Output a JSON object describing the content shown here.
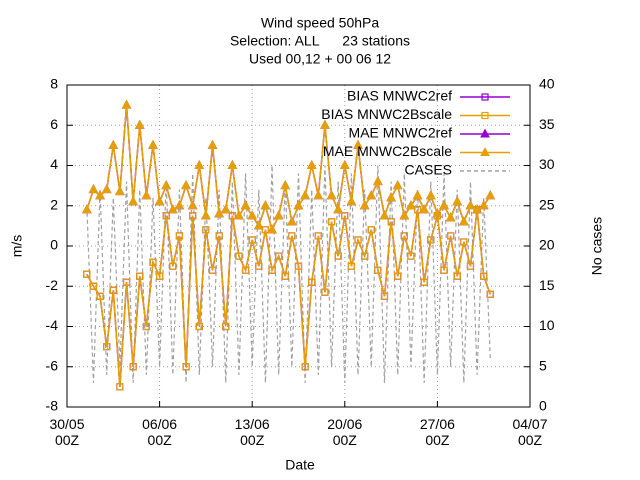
{
  "chart_data": {
    "type": "line",
    "title": [
      "Wind speed 50hPa",
      "Selection: ALL      23 stations",
      "Used 00,12 + 00 06 12"
    ],
    "xlabel": "Date",
    "ylabel": "m/s",
    "y2label": "No cases",
    "x": [
      "31/05 12Z",
      "01/06 00Z",
      "01/06 12Z",
      "02/06 00Z",
      "02/06 12Z",
      "03/06 00Z",
      "03/06 12Z",
      "04/06 00Z",
      "04/06 12Z",
      "05/06 00Z",
      "05/06 12Z",
      "06/06 00Z",
      "06/06 12Z",
      "07/06 00Z",
      "07/06 12Z",
      "08/06 00Z",
      "08/06 12Z",
      "09/06 00Z",
      "09/06 12Z",
      "10/06 00Z",
      "10/06 12Z",
      "11/06 00Z",
      "11/06 12Z",
      "12/06 00Z",
      "12/06 12Z",
      "13/06 00Z",
      "13/06 12Z",
      "14/06 00Z",
      "14/06 12Z",
      "15/06 00Z",
      "15/06 12Z",
      "16/06 00Z",
      "16/06 12Z",
      "17/06 00Z",
      "17/06 12Z",
      "18/06 00Z",
      "18/06 12Z",
      "19/06 00Z",
      "19/06 12Z",
      "20/06 00Z",
      "20/06 12Z",
      "21/06 00Z",
      "21/06 12Z",
      "22/06 00Z",
      "22/06 12Z",
      "23/06 00Z",
      "23/06 12Z",
      "24/06 00Z",
      "24/06 12Z",
      "25/06 00Z",
      "25/06 12Z",
      "26/06 00Z",
      "26/06 12Z",
      "27/06 00Z",
      "27/06 12Z",
      "28/06 00Z",
      "28/06 12Z",
      "29/06 00Z",
      "29/06 12Z",
      "30/06 00Z",
      "30/06 12Z",
      "01/07 00Z"
    ],
    "series": [
      {
        "name": "CASES",
        "color": "#a0a0a0",
        "axis": "y2",
        "dashed": true,
        "marker": "none",
        "values": [
          25,
          3,
          27,
          4,
          26,
          5,
          28,
          3,
          27,
          4,
          26,
          5,
          28,
          4,
          27,
          3,
          29,
          4,
          26,
          5,
          27,
          3,
          28,
          4,
          29,
          5,
          27,
          3,
          30,
          4,
          28,
          5,
          29,
          3,
          27,
          4,
          30,
          5,
          28,
          3,
          29,
          4,
          27,
          5,
          30,
          3,
          28,
          4,
          29,
          5,
          27,
          3,
          28,
          4,
          29,
          5,
          27,
          3,
          28,
          4,
          26,
          6
        ]
      },
      {
        "name": "BIAS MNWC2ref",
        "color": "#9400d3",
        "marker": "square",
        "values": [
          -1.4,
          -2,
          -2.5,
          -5,
          -2.2,
          -7,
          -1.8,
          -6,
          -1.5,
          -4,
          -0.8,
          -1.5,
          1.5,
          -1,
          0.5,
          -6,
          1.5,
          -4,
          0.8,
          -1.2,
          0.5,
          -4,
          1.5,
          -0.5,
          -1.2,
          0.3,
          -1,
          0.8,
          -1.2,
          -0.5,
          -1.5,
          0.5,
          -1,
          -6,
          -1.8,
          0.5,
          -2.3,
          1.2,
          -0.5,
          1.5,
          -1,
          0.3,
          -0.5,
          0.8,
          -1.2,
          -2.5,
          1.2,
          -1.5,
          0.5,
          -0.5,
          1.8,
          -1.8,
          0.3,
          1.5,
          -1.2,
          0.5,
          -1.5,
          0.2,
          -1,
          1.8,
          -1.5,
          -2.4
        ]
      },
      {
        "name": "BIAS MNWC2Bscale",
        "color": "#e69f00",
        "marker": "square",
        "values": [
          -1.4,
          -2,
          -2.5,
          -5,
          -2.2,
          -7,
          -1.8,
          -6,
          -1.5,
          -4,
          -0.8,
          -1.5,
          1.5,
          -1,
          0.5,
          -6,
          1.5,
          -4,
          0.8,
          -1.2,
          0.5,
          -4,
          1.5,
          -0.5,
          -1.2,
          0.3,
          -1,
          0.8,
          -1.2,
          -0.5,
          -1.5,
          0.5,
          -1,
          -6,
          -1.8,
          0.5,
          -2.3,
          1.2,
          -0.5,
          1.5,
          -1,
          0.3,
          -0.5,
          0.8,
          -1.2,
          -2.5,
          1.2,
          -1.5,
          0.5,
          -0.5,
          1.8,
          -1.8,
          0.3,
          1.5,
          -1.2,
          0.5,
          -1.5,
          0.2,
          -1,
          1.8,
          -1.5,
          -2.4
        ]
      },
      {
        "name": "MAE MNWC2ref",
        "color": "#9400d3",
        "marker": "triangle",
        "values": [
          1.8,
          2.8,
          2.5,
          2.8,
          5,
          2.7,
          7,
          2.2,
          6,
          2.5,
          5,
          2.2,
          3,
          1.8,
          2,
          3,
          2,
          4,
          1.5,
          5,
          1.6,
          1.8,
          4,
          1.5,
          2,
          1.5,
          1,
          2,
          0.8,
          1.5,
          3,
          1.2,
          2,
          2.5,
          4,
          2.5,
          6,
          2.5,
          1.8,
          4,
          2.2,
          5,
          2,
          2.5,
          3.2,
          1.5,
          2.4,
          3,
          1.5,
          2,
          2.5,
          1.8,
          2.5,
          1.6,
          2,
          1.4,
          2.2,
          1.2,
          2,
          1.8,
          2,
          2.5
        ]
      },
      {
        "name": "MAE MNWC2Bscale",
        "color": "#e69f00",
        "marker": "triangle",
        "values": [
          1.8,
          2.8,
          2.5,
          2.8,
          5,
          2.7,
          7,
          2.2,
          6,
          2.5,
          5,
          2.2,
          3,
          1.8,
          2,
          3,
          2,
          4,
          1.5,
          5,
          1.6,
          1.8,
          4,
          1.5,
          2,
          1.5,
          1,
          2,
          0.8,
          1.5,
          3,
          1.2,
          2,
          2.5,
          4,
          2.5,
          6,
          2.5,
          1.8,
          4,
          2.2,
          5,
          2,
          2.5,
          3.2,
          1.5,
          2.4,
          3,
          1.5,
          2,
          2.5,
          1.8,
          2.5,
          1.6,
          2,
          1.4,
          2.2,
          1.2,
          2,
          1.8,
          2,
          2.5
        ]
      }
    ],
    "legend_order": [
      1,
      2,
      3,
      4,
      0
    ],
    "xlim": [
      "30/05 00Z",
      "04/07 00Z"
    ],
    "xticks": [
      {
        "value": "30/05 00Z",
        "label": "30/05\n00Z"
      },
      {
        "value": "06/06 00Z",
        "label": "06/06\n00Z"
      },
      {
        "value": "13/06 00Z",
        "label": "13/06\n00Z"
      },
      {
        "value": "20/06 00Z",
        "label": "20/06\n00Z"
      },
      {
        "value": "27/06 00Z",
        "label": "27/06\n00Z"
      },
      {
        "value": "04/07 00Z",
        "label": "04/07\n00Z"
      }
    ],
    "ylim": [
      -8,
      8
    ],
    "yticks": [
      -8,
      -6,
      -4,
      -2,
      0,
      2,
      4,
      6,
      8
    ],
    "y2lim": [
      0,
      40
    ],
    "y2ticks": [
      0,
      5,
      10,
      15,
      20,
      25,
      30,
      35,
      40
    ],
    "grid": true,
    "legend": "top right"
  }
}
